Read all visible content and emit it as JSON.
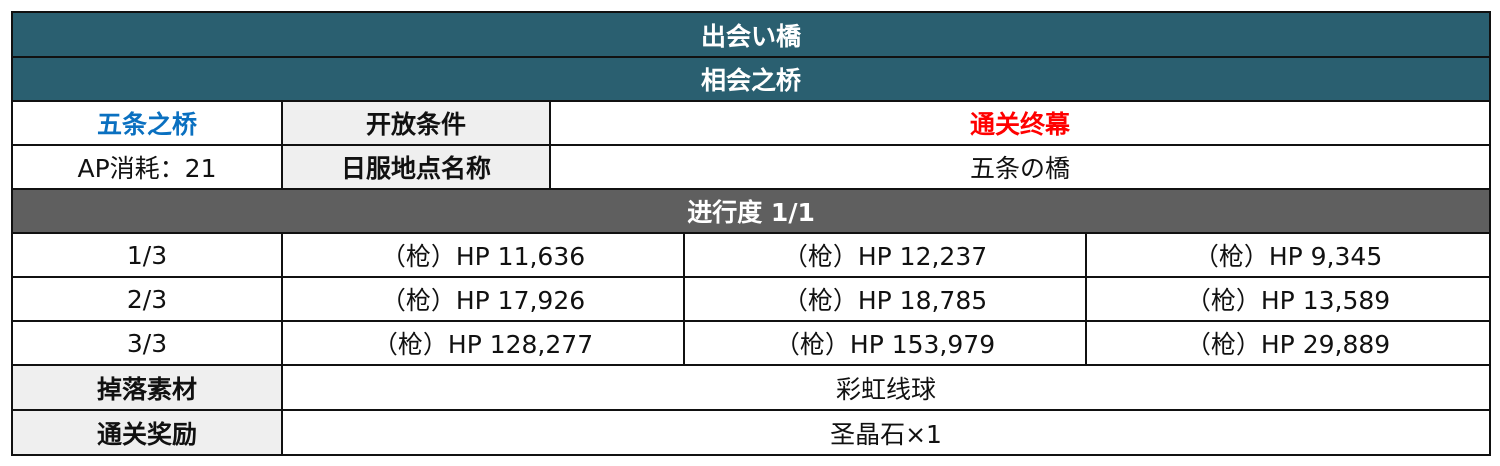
{
  "title_jp": "出会い橋",
  "title_cn": "相会之桥",
  "node_name": "五条之桥",
  "open_condition_label": "开放条件",
  "open_condition_value": "通关终幕",
  "ap_cost": "AP消耗：21",
  "jp_name_label": "日服地点名称",
  "jp_name_value": "五条の橋",
  "progress": "进行度 1/1",
  "waves": [
    {
      "label": "1/3",
      "enemies": [
        "（枪）HP 11,636",
        "（枪）HP 12,237",
        "（枪）HP 9,345"
      ]
    },
    {
      "label": "2/3",
      "enemies": [
        "（枪）HP 17,926",
        "（枪）HP 18,785",
        "（枪）HP 13,589"
      ]
    },
    {
      "label": "3/3",
      "enemies": [
        "（枪）HP 128,277",
        "（枪）HP 153,979",
        "（枪）HP 29,889"
      ]
    }
  ],
  "drops_label": "掉落素材",
  "drops_value": "彩虹线球",
  "reward_label": "通关奖励",
  "reward_value": "圣晶石×1",
  "colors": {
    "header": "#2a5f70",
    "progress": "#5f5f5f",
    "label_bg": "#efefef",
    "blue": "#0a70c0",
    "red": "#ff0000"
  }
}
